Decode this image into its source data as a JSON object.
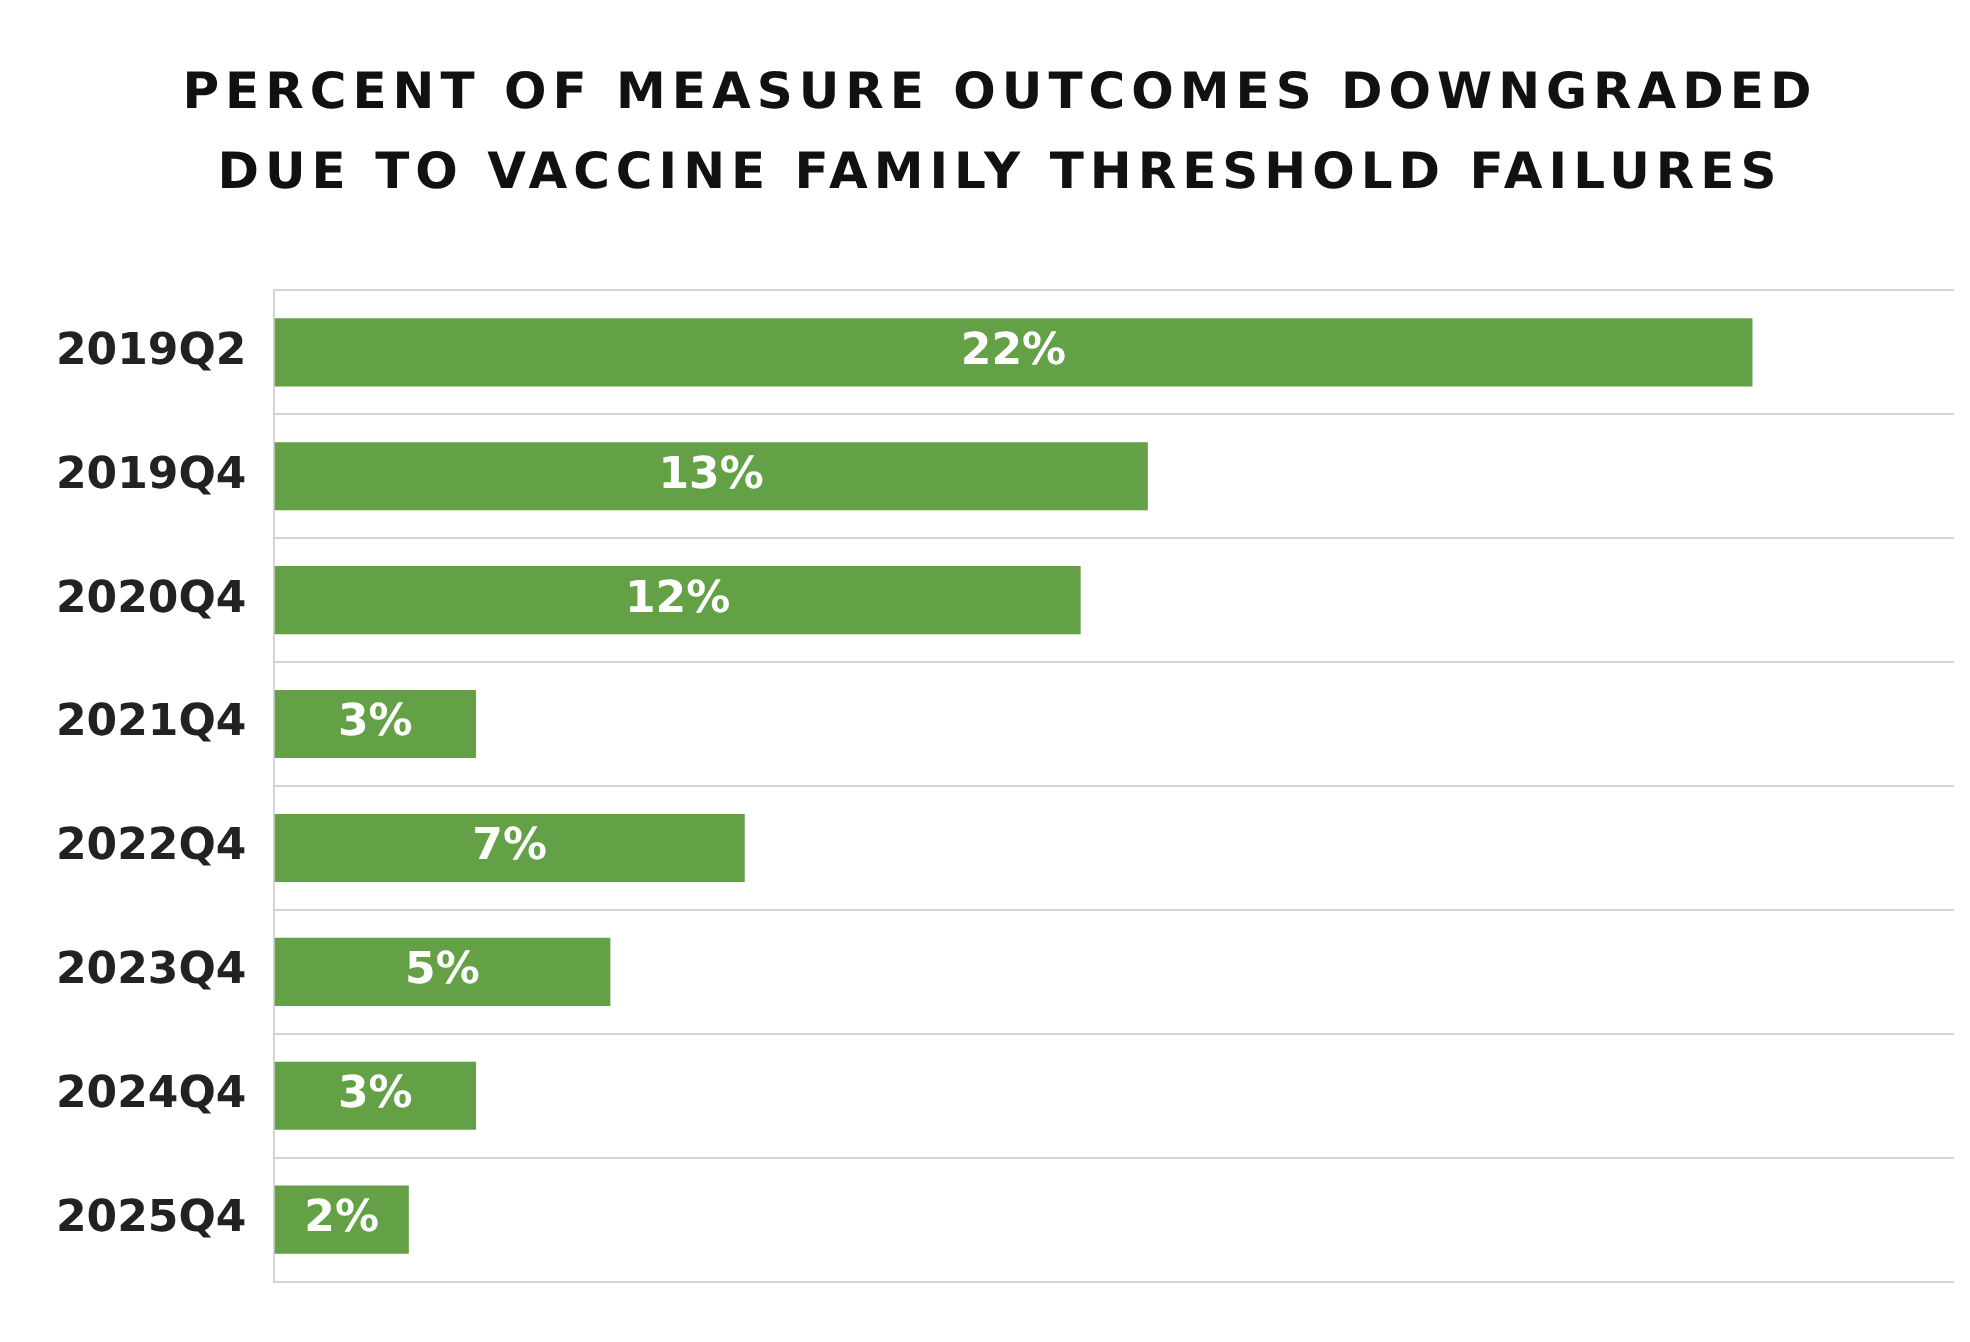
{
  "chart_data": {
    "type": "bar",
    "orientation": "horizontal",
    "title": "PERCENT OF MEASURE OUTCOMES DOWNGRADED DUE TO VACCINE FAMILY THRESHOLD FAILURES",
    "categories": [
      "2019Q2",
      "2019Q4",
      "2020Q4",
      "2021Q4",
      "2022Q4",
      "2023Q4",
      "2024Q4",
      "2025Q4"
    ],
    "values": [
      22,
      13,
      12,
      3,
      7,
      5,
      3,
      2
    ],
    "value_labels": [
      "22%",
      "13%",
      "12%",
      "3%",
      "7%",
      "5%",
      "3%",
      "2%"
    ],
    "color": "#63a046",
    "grid": "y"
  }
}
